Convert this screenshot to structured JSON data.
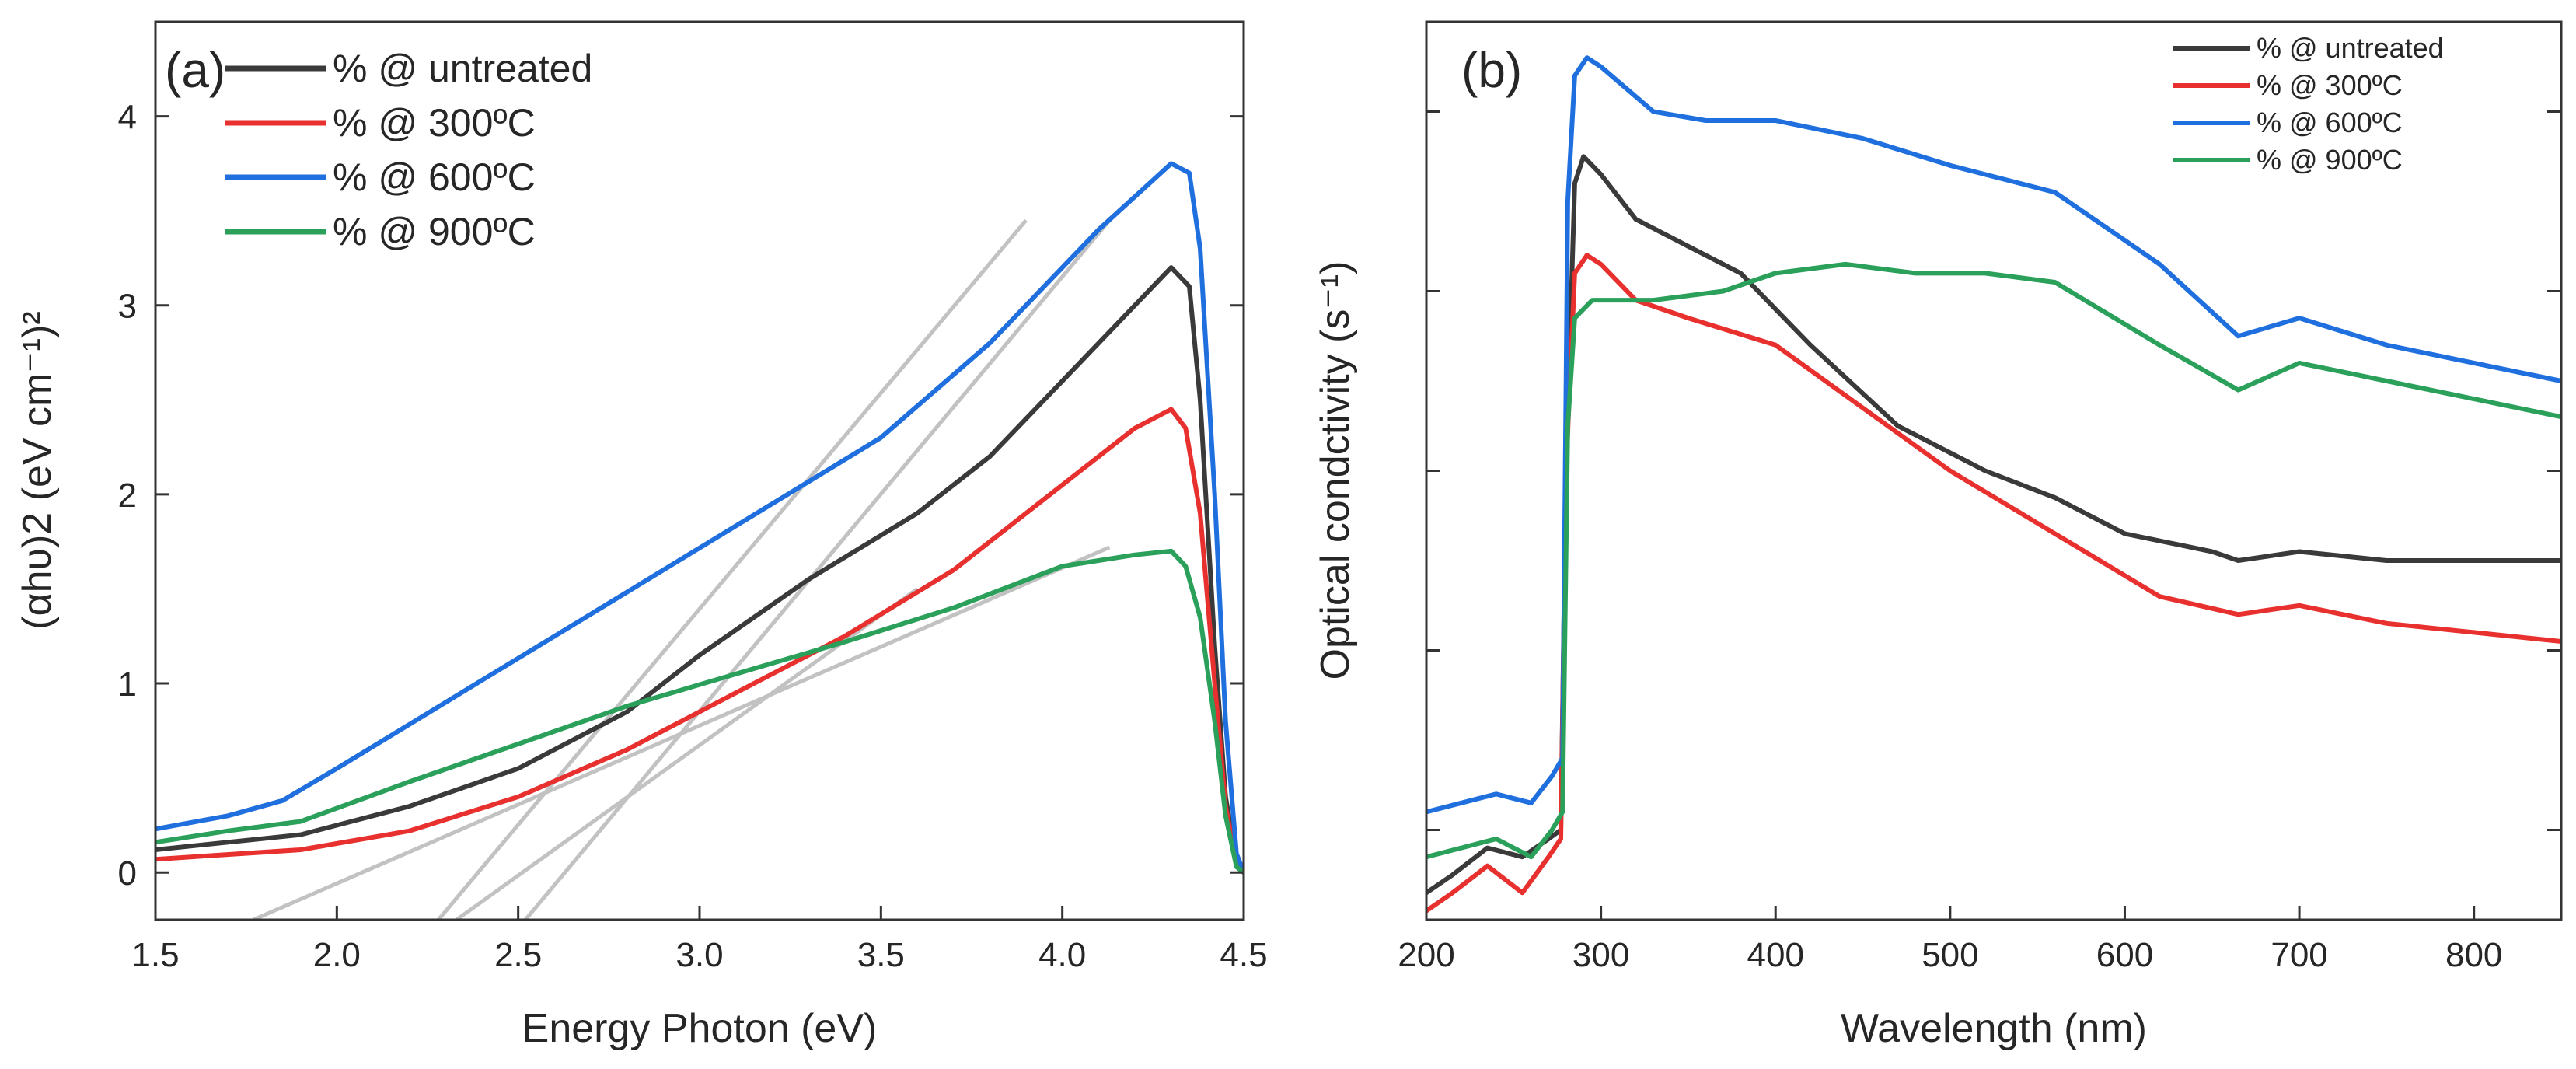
{
  "colors": {
    "untreated": "#3a3a3a",
    "c300": "#e8312f",
    "c600": "#1f6fde",
    "c900": "#2aa05a",
    "fit": "#c2c2c2",
    "frame": "#333333"
  },
  "chart_data": [
    {
      "panel_label": "(a)",
      "type": "line",
      "title": "",
      "xlabel": "Energy Photon (eV)",
      "ylabel": "(αhυ)2 (eV cm⁻¹)²",
      "xlim": [
        1.5,
        4.5
      ],
      "ylim": [
        -0.25,
        4.5
      ],
      "xticks": [
        1.5,
        2.0,
        2.5,
        3.0,
        3.5,
        4.0,
        4.5
      ],
      "xtick_labels": [
        "1.5",
        "2.0",
        "2.5",
        "3.0",
        "3.5",
        "4.0",
        "4.5"
      ],
      "yticks": [
        0,
        1,
        2,
        3,
        4
      ],
      "ytick_labels": [
        "0",
        "1",
        "2",
        "3",
        "4"
      ],
      "legend_position": "top-left",
      "series": [
        {
          "name": "% @ untreated",
          "color_key": "untreated",
          "x": [
            1.5,
            1.9,
            2.2,
            2.5,
            2.8,
            3.0,
            3.3,
            3.6,
            3.8,
            4.0,
            4.2,
            4.3,
            4.35,
            4.38,
            4.42,
            4.45,
            4.48,
            4.5
          ],
          "y": [
            0.12,
            0.2,
            0.35,
            0.55,
            0.85,
            1.15,
            1.55,
            1.9,
            2.2,
            2.6,
            3.0,
            3.2,
            3.1,
            2.5,
            1.2,
            0.4,
            0.05,
            0.0
          ]
        },
        {
          "name": "% @ 300ºC",
          "color_key": "c300",
          "x": [
            1.5,
            1.9,
            2.2,
            2.5,
            2.8,
            3.1,
            3.4,
            3.7,
            4.0,
            4.2,
            4.3,
            4.34,
            4.38,
            4.42,
            4.45,
            4.48,
            4.5
          ],
          "y": [
            0.07,
            0.12,
            0.22,
            0.4,
            0.65,
            0.95,
            1.25,
            1.6,
            2.05,
            2.35,
            2.45,
            2.35,
            1.9,
            1.0,
            0.35,
            0.05,
            0.0
          ]
        },
        {
          "name": "% @ 600ºC",
          "color_key": "c600",
          "x": [
            1.5,
            1.7,
            1.85,
            2.0,
            2.3,
            2.6,
            2.9,
            3.2,
            3.5,
            3.8,
            4.1,
            4.3,
            4.35,
            4.38,
            4.42,
            4.45,
            4.48,
            4.5
          ],
          "y": [
            0.23,
            0.3,
            0.38,
            0.55,
            0.9,
            1.25,
            1.6,
            1.95,
            2.3,
            2.8,
            3.4,
            3.75,
            3.7,
            3.3,
            2.0,
            0.8,
            0.1,
            0.0
          ]
        },
        {
          "name": "% @ 900ºC",
          "color_key": "c900",
          "x": [
            1.5,
            1.7,
            1.9,
            2.2,
            2.5,
            2.8,
            3.1,
            3.4,
            3.7,
            4.0,
            4.2,
            4.3,
            4.34,
            4.38,
            4.42,
            4.45,
            4.48,
            4.5
          ],
          "y": [
            0.16,
            0.22,
            0.27,
            0.48,
            0.68,
            0.88,
            1.05,
            1.22,
            1.4,
            1.62,
            1.68,
            1.7,
            1.62,
            1.35,
            0.8,
            0.3,
            0.03,
            0.0
          ]
        }
      ],
      "fit_lines": [
        {
          "x": [
            1.77,
            4.13
          ],
          "y": [
            -0.25,
            1.72
          ]
        },
        {
          "x": [
            2.28,
            3.9
          ],
          "y": [
            -0.25,
            3.45
          ]
        },
        {
          "x": [
            2.52,
            4.13
          ],
          "y": [
            -0.25,
            3.45
          ]
        },
        {
          "x": [
            2.33,
            3.6
          ],
          "y": [
            -0.25,
            1.5
          ]
        }
      ]
    },
    {
      "panel_label": "(b)",
      "type": "line",
      "title": "",
      "xlabel": "Wavelength (nm)",
      "ylabel": "Optical condctivity (s⁻¹)",
      "xlim": [
        200,
        850
      ],
      "ylim": [
        0,
        1
      ],
      "xticks": [
        200,
        300,
        400,
        500,
        600,
        700,
        800
      ],
      "xtick_labels": [
        "200",
        "300",
        "400",
        "500",
        "600",
        "700",
        "800"
      ],
      "yticks": [
        0.1,
        0.3,
        0.5,
        0.7,
        0.9
      ],
      "ytick_labels": [],
      "legend_position": "top-right",
      "series": [
        {
          "name": "% @ untreated",
          "color_key": "untreated",
          "x": [
            200,
            215,
            235,
            255,
            270,
            277,
            280,
            285,
            290,
            300,
            320,
            350,
            380,
            420,
            470,
            520,
            560,
            600,
            650,
            665,
            700,
            750,
            800,
            850
          ],
          "y": [
            0.03,
            0.05,
            0.08,
            0.07,
            0.09,
            0.1,
            0.5,
            0.82,
            0.85,
            0.83,
            0.78,
            0.75,
            0.72,
            0.64,
            0.55,
            0.5,
            0.47,
            0.43,
            0.41,
            0.4,
            0.41,
            0.4,
            0.4,
            0.4
          ]
        },
        {
          "name": "% @ 300ºC",
          "color_key": "c300",
          "x": [
            200,
            215,
            235,
            255,
            270,
            277,
            280,
            285,
            292,
            300,
            320,
            350,
            400,
            450,
            500,
            560,
            620,
            665,
            700,
            750,
            800,
            850
          ],
          "y": [
            0.01,
            0.03,
            0.06,
            0.03,
            0.07,
            0.09,
            0.5,
            0.72,
            0.74,
            0.73,
            0.69,
            0.67,
            0.64,
            0.57,
            0.5,
            0.43,
            0.36,
            0.34,
            0.35,
            0.33,
            0.32,
            0.31
          ]
        },
        {
          "name": "% @ 600ºC",
          "color_key": "c600",
          "x": [
            200,
            220,
            240,
            260,
            272,
            278,
            281,
            285,
            292,
            300,
            330,
            360,
            400,
            450,
            500,
            560,
            620,
            665,
            700,
            750,
            800,
            850
          ],
          "y": [
            0.12,
            0.13,
            0.14,
            0.13,
            0.16,
            0.18,
            0.8,
            0.94,
            0.96,
            0.95,
            0.9,
            0.89,
            0.89,
            0.87,
            0.84,
            0.81,
            0.73,
            0.65,
            0.67,
            0.64,
            0.62,
            0.6
          ]
        },
        {
          "name": "% @ 900ºC",
          "color_key": "c900",
          "x": [
            200,
            220,
            240,
            260,
            272,
            278,
            281,
            285,
            295,
            330,
            370,
            400,
            440,
            480,
            520,
            560,
            620,
            665,
            700,
            750,
            800,
            850
          ],
          "y": [
            0.07,
            0.08,
            0.09,
            0.07,
            0.1,
            0.12,
            0.55,
            0.67,
            0.69,
            0.69,
            0.7,
            0.72,
            0.73,
            0.72,
            0.72,
            0.71,
            0.64,
            0.59,
            0.62,
            0.6,
            0.58,
            0.56
          ]
        }
      ]
    }
  ]
}
